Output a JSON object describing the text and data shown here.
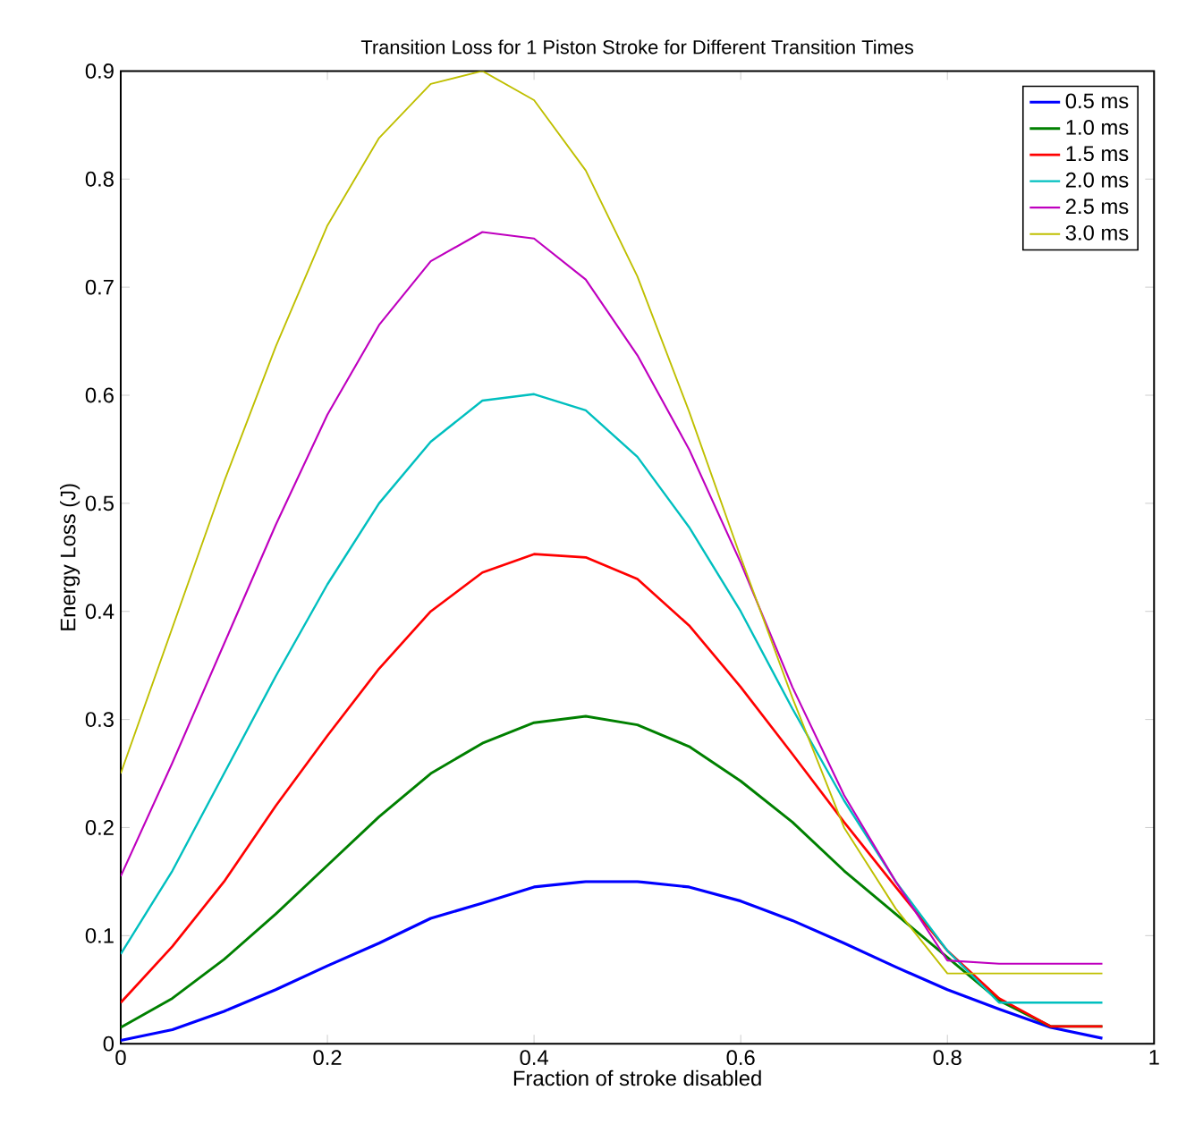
{
  "chart_data": {
    "type": "line",
    "title": "Transition Loss for 1 Piston Stroke for Different Transition Times",
    "xlabel": "Fraction of stroke disabled",
    "ylabel": "Energy Loss (J)",
    "x": [
      0,
      0.05,
      0.1,
      0.15,
      0.2,
      0.25,
      0.3,
      0.35,
      0.4,
      0.45,
      0.5,
      0.55,
      0.6,
      0.65,
      0.7,
      0.75,
      0.8,
      0.85,
      0.9,
      0.95
    ],
    "series": [
      {
        "name": "0.5 ms",
        "color": "#0000ff",
        "values": [
          0.003,
          0.013,
          0.03,
          0.05,
          0.072,
          0.093,
          0.116,
          0.13,
          0.145,
          0.15,
          0.15,
          0.145,
          0.132,
          0.114,
          0.093,
          0.071,
          0.05,
          0.032,
          0.015,
          0.005
        ]
      },
      {
        "name": "1.0 ms",
        "color": "#008000",
        "values": [
          0.015,
          0.042,
          0.078,
          0.12,
          0.165,
          0.21,
          0.25,
          0.278,
          0.297,
          0.303,
          0.295,
          0.275,
          0.243,
          0.205,
          0.16,
          0.12,
          0.08,
          0.04,
          0.016,
          0.016
        ]
      },
      {
        "name": "1.5 ms",
        "color": "#ff0000",
        "values": [
          0.038,
          0.09,
          0.15,
          0.22,
          0.285,
          0.347,
          0.4,
          0.436,
          0.453,
          0.45,
          0.43,
          0.387,
          0.33,
          0.268,
          0.205,
          0.145,
          0.086,
          0.042,
          0.016,
          0.016
        ]
      },
      {
        "name": "2.0 ms",
        "color": "#00bfbf",
        "values": [
          0.083,
          0.16,
          0.25,
          0.34,
          0.425,
          0.5,
          0.557,
          0.595,
          0.601,
          0.586,
          0.543,
          0.478,
          0.4,
          0.31,
          0.225,
          0.15,
          0.086,
          0.038,
          0.038,
          0.038
        ]
      },
      {
        "name": "2.5 ms",
        "color": "#bf00bf",
        "values": [
          0.155,
          0.26,
          0.37,
          0.48,
          0.582,
          0.665,
          0.724,
          0.751,
          0.745,
          0.707,
          0.637,
          0.55,
          0.445,
          0.33,
          0.23,
          0.15,
          0.077,
          0.074,
          0.074,
          0.074
        ]
      },
      {
        "name": "3.0 ms",
        "color": "#bfbf00",
        "values": [
          0.25,
          0.385,
          0.52,
          0.645,
          0.757,
          0.838,
          0.888,
          0.9,
          0.873,
          0.808,
          0.71,
          0.585,
          0.45,
          0.32,
          0.2,
          0.125,
          0.065,
          0.065,
          0.065,
          0.065
        ]
      }
    ],
    "xlim": [
      0,
      1
    ],
    "ylim": [
      0,
      0.9
    ],
    "xticks": [
      0,
      0.2,
      0.4,
      0.6,
      0.8,
      1
    ],
    "yticks": [
      0,
      0.1,
      0.2,
      0.3,
      0.4,
      0.5,
      0.6,
      0.7,
      0.8,
      0.9
    ],
    "grid": false,
    "legend": "top right",
    "marker": "none",
    "line_style": "solid"
  }
}
